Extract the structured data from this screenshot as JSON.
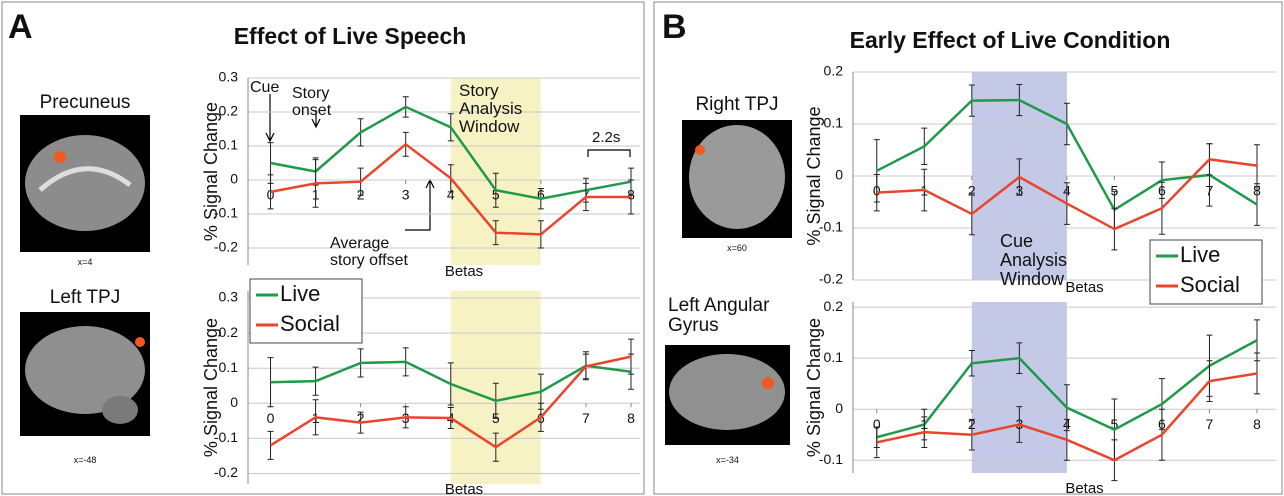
{
  "panels": [
    {
      "letter": "A",
      "title": "Effect of Live Speech",
      "regions": [
        {
          "name": "Precuneus",
          "coord": "x=4"
        },
        {
          "name": "Left TPJ",
          "coord": "x=-48"
        }
      ]
    },
    {
      "letter": "B",
      "title": "Early Effect of Live Condition",
      "regions": [
        {
          "name": "Right TPJ",
          "coord": "x=60"
        },
        {
          "name": "Left Angular Gyrus",
          "coord": "x=-34"
        }
      ]
    }
  ],
  "chart_data": [
    {
      "type": "line",
      "y_label": "% Signal Change",
      "x_label": "Betas",
      "x": [
        0,
        1,
        2,
        3,
        4,
        5,
        6,
        7,
        8
      ],
      "xlim": [
        -0.5,
        8.2
      ],
      "xticks": [
        0,
        1,
        2,
        3,
        4,
        5,
        6,
        7,
        8
      ],
      "ylim": [
        -0.25,
        0.3
      ],
      "yticks": [
        -0.2,
        -0.1,
        0,
        0.1,
        0.2,
        0.3
      ],
      "grid": true,
      "window": [
        4,
        6
      ],
      "window_color": "#f7f2c4",
      "annotations": [
        "Cue",
        "Story onset",
        "Average story offset",
        "Story Analysis Window",
        "2.2s"
      ],
      "series": [
        {
          "name": "Live",
          "color": "#1f9a4a",
          "values": [
            0.05,
            0.025,
            0.14,
            0.215,
            0.155,
            -0.03,
            -0.055,
            -0.03,
            -0.005
          ],
          "errors": [
            0.06,
            0.04,
            0.04,
            0.03,
            0.04,
            0.05,
            0.03,
            0.035,
            0.04
          ]
        },
        {
          "name": "Social",
          "color": "#e8452c",
          "values": [
            -0.035,
            -0.01,
            -0.005,
            0.105,
            0.005,
            -0.155,
            -0.16,
            -0.05,
            -0.05
          ],
          "errors": [
            0.05,
            0.07,
            0.04,
            0.035,
            0.04,
            0.035,
            0.04,
            0.04,
            0.05
          ]
        }
      ]
    },
    {
      "type": "line",
      "y_label": "% Signal Change",
      "x_label": "Betas",
      "x": [
        0,
        1,
        2,
        3,
        4,
        5,
        6,
        7,
        8
      ],
      "xlim": [
        -0.5,
        8.2
      ],
      "xticks": [
        0,
        1,
        2,
        3,
        4,
        5,
        6,
        7,
        8
      ],
      "ylim": [
        -0.23,
        0.32
      ],
      "yticks": [
        -0.2,
        -0.1,
        0,
        0.1,
        0.2,
        0.3
      ],
      "grid": true,
      "window": [
        4,
        6
      ],
      "window_color": "#f7f2c4",
      "legend": "upper-left",
      "series": [
        {
          "name": "Live",
          "color": "#1f9a4a",
          "values": [
            0.06,
            0.063,
            0.115,
            0.118,
            0.055,
            0.007,
            0.033,
            0.107,
            0.09
          ],
          "errors": [
            0.07,
            0.04,
            0.04,
            0.04,
            0.06,
            0.05,
            0.05,
            0.04,
            0.05
          ]
        },
        {
          "name": "Social",
          "color": "#e8452c",
          "values": [
            -0.12,
            -0.04,
            -0.055,
            -0.04,
            -0.042,
            -0.125,
            -0.04,
            0.105,
            0.133
          ],
          "errors": [
            0.04,
            0.05,
            0.03,
            0.03,
            0.03,
            0.04,
            0.04,
            0.035,
            0.05
          ]
        }
      ]
    },
    {
      "type": "line",
      "y_label": "% Signal Change",
      "x_label": "Betas",
      "x": [
        0,
        1,
        2,
        3,
        4,
        5,
        6,
        7,
        8
      ],
      "xlim": [
        -0.5,
        8.4
      ],
      "xticks": [
        0,
        1,
        2,
        3,
        4,
        5,
        6,
        7,
        8
      ],
      "ylim": [
        -0.2,
        0.2
      ],
      "yticks": [
        -0.2,
        -0.1,
        0,
        0.1,
        0.2
      ],
      "grid": true,
      "window": [
        2,
        4
      ],
      "window_color": "#c5c9e8",
      "legend": "lower-right",
      "annotations": [
        "Cue Analysis Window"
      ],
      "series": [
        {
          "name": "Live",
          "color": "#1f9a4a",
          "values": [
            0.01,
            0.057,
            0.145,
            0.146,
            0.1,
            -0.065,
            -0.008,
            0.002,
            -0.055
          ],
          "errors": [
            0.06,
            0.035,
            0.03,
            0.03,
            0.04,
            0.035,
            0.035,
            0.06,
            0.04
          ]
        },
        {
          "name": "Social",
          "color": "#e8452c",
          "values": [
            -0.032,
            -0.027,
            -0.073,
            -0.002,
            -0.053,
            -0.102,
            -0.062,
            0.032,
            0.02
          ],
          "errors": [
            0.035,
            0.04,
            0.04,
            0.035,
            0.04,
            0.04,
            0.05,
            0.03,
            0.04
          ]
        }
      ]
    },
    {
      "type": "line",
      "y_label": "% Signal Change",
      "x_label": "Betas",
      "x": [
        0,
        1,
        2,
        3,
        4,
        5,
        6,
        7,
        8
      ],
      "xlim": [
        -0.5,
        8.4
      ],
      "xticks": [
        0,
        1,
        2,
        3,
        4,
        5,
        6,
        7,
        8
      ],
      "ylim": [
        -0.125,
        0.21
      ],
      "yticks": [
        -0.1,
        0,
        0.1,
        0.2
      ],
      "grid": true,
      "window": [
        2,
        4
      ],
      "window_color": "#c5c9e8",
      "series": [
        {
          "name": "Live",
          "color": "#1f9a4a",
          "values": [
            -0.055,
            -0.03,
            0.09,
            0.1,
            0.003,
            -0.04,
            0.01,
            0.085,
            0.135
          ],
          "errors": [
            0.02,
            0.03,
            0.025,
            0.03,
            0.045,
            0.06,
            0.05,
            0.06,
            0.04
          ]
        },
        {
          "name": "Social",
          "color": "#e8452c",
          "values": [
            -0.065,
            -0.045,
            -0.05,
            -0.03,
            -0.06,
            -0.1,
            -0.05,
            0.055,
            0.07
          ],
          "errors": [
            0.03,
            0.03,
            0.03,
            0.035,
            0.04,
            0.04,
            0.05,
            0.04,
            0.04
          ]
        }
      ]
    }
  ]
}
